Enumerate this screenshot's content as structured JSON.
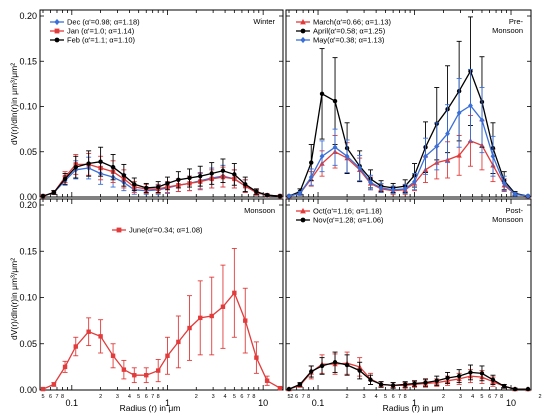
{
  "chart_data": [
    {
      "type": "line",
      "panel": "top-left",
      "title": "Winter",
      "xscale": "log",
      "xlim": [
        0.05,
        15
      ],
      "ylim": [
        0,
        0.2
      ],
      "yticks": [
        "0.00",
        "0.05",
        "0.10",
        "0.15",
        "0.20"
      ],
      "legend_placement": "top-left",
      "x": [
        0.05,
        0.065,
        0.085,
        0.11,
        0.15,
        0.2,
        0.27,
        0.35,
        0.45,
        0.6,
        0.8,
        1.0,
        1.3,
        1.7,
        2.2,
        2.9,
        3.8,
        5.0,
        6.5,
        8.5,
        11,
        15
      ],
      "series": [
        {
          "name": "Dec (α'=0.98; α=1.18)",
          "color": "#3a6fd8",
          "marker": "diamond",
          "values": [
            0.001,
            0.005,
            0.018,
            0.03,
            0.032,
            0.026,
            0.022,
            0.016,
            0.008,
            0.007,
            0.008,
            0.01,
            0.013,
            0.015,
            0.018,
            0.021,
            0.023,
            0.02,
            0.012,
            0.005,
            0.002,
            0.001
          ],
          "errors": [
            0,
            0.002,
            0.005,
            0.01,
            0.012,
            0.012,
            0.011,
            0.009,
            0.005,
            0.004,
            0.005,
            0.006,
            0.007,
            0.008,
            0.009,
            0.011,
            0.012,
            0.01,
            0.007,
            0.003,
            0.001,
            0
          ]
        },
        {
          "name": "Jan (α'=1.0; α=1.14)",
          "color": "#e23b3b",
          "marker": "square",
          "values": [
            0.001,
            0.005,
            0.022,
            0.036,
            0.036,
            0.032,
            0.028,
            0.02,
            0.011,
            0.009,
            0.009,
            0.011,
            0.013,
            0.015,
            0.017,
            0.02,
            0.022,
            0.02,
            0.012,
            0.005,
            0.002,
            0.001
          ],
          "errors": [
            0,
            0.002,
            0.006,
            0.011,
            0.012,
            0.013,
            0.012,
            0.01,
            0.006,
            0.005,
            0.005,
            0.006,
            0.007,
            0.008,
            0.009,
            0.01,
            0.011,
            0.01,
            0.007,
            0.003,
            0.001,
            0
          ]
        },
        {
          "name": "Feb (α'=1.1; α=1.10)",
          "color": "#000000",
          "marker": "circle",
          "values": [
            0.001,
            0.005,
            0.02,
            0.033,
            0.037,
            0.039,
            0.033,
            0.024,
            0.014,
            0.01,
            0.011,
            0.015,
            0.019,
            0.021,
            0.023,
            0.026,
            0.029,
            0.025,
            0.014,
            0.006,
            0.002,
            0.001
          ],
          "errors": [
            0,
            0.002,
            0.006,
            0.012,
            0.014,
            0.016,
            0.014,
            0.012,
            0.007,
            0.005,
            0.006,
            0.007,
            0.009,
            0.01,
            0.011,
            0.012,
            0.013,
            0.012,
            0.008,
            0.003,
            0.001,
            0
          ]
        }
      ]
    },
    {
      "type": "line",
      "panel": "top-right",
      "title": "Pre-\nMonsoon",
      "xscale": "log",
      "xlim": [
        0.05,
        15
      ],
      "ylim": [
        0,
        0.2
      ],
      "legend_placement": "top-left",
      "x": [
        0.05,
        0.065,
        0.085,
        0.11,
        0.15,
        0.2,
        0.27,
        0.35,
        0.45,
        0.6,
        0.8,
        1.0,
        1.3,
        1.7,
        2.2,
        2.9,
        3.8,
        5.0,
        6.5,
        8.5,
        11,
        15
      ],
      "series": [
        {
          "name": "March(α'=0.66; α=1.13)",
          "color": "#e23b3b",
          "marker": "triangle",
          "values": [
            0.001,
            0.004,
            0.02,
            0.037,
            0.05,
            0.043,
            0.03,
            0.015,
            0.009,
            0.007,
            0.008,
            0.015,
            0.03,
            0.038,
            0.041,
            0.046,
            0.062,
            0.057,
            0.035,
            0.013,
            0.003,
            0.001
          ],
          "errors": [
            0,
            0.002,
            0.008,
            0.014,
            0.018,
            0.017,
            0.013,
            0.007,
            0.004,
            0.004,
            0.005,
            0.008,
            0.014,
            0.018,
            0.02,
            0.022,
            0.028,
            0.027,
            0.018,
            0.007,
            0.002,
            0
          ]
        },
        {
          "name": "April(α'=0.58; α=1.25)",
          "color": "#000000",
          "marker": "circle",
          "values": [
            0.001,
            0.006,
            0.038,
            0.114,
            0.106,
            0.054,
            0.034,
            0.02,
            0.012,
            0.01,
            0.012,
            0.024,
            0.055,
            0.081,
            0.097,
            0.117,
            0.139,
            0.105,
            0.054,
            0.018,
            0.004,
            0.001
          ],
          "errors": [
            0,
            0.003,
            0.02,
            0.05,
            0.048,
            0.028,
            0.017,
            0.01,
            0.006,
            0.005,
            0.007,
            0.013,
            0.028,
            0.04,
            0.048,
            0.055,
            0.06,
            0.05,
            0.028,
            0.01,
            0.002,
            0
          ]
        },
        {
          "name": "May(α'=0.38; α=1.13)",
          "color": "#3a6fd8",
          "marker": "diamond",
          "values": [
            0.001,
            0.004,
            0.022,
            0.045,
            0.055,
            0.045,
            0.032,
            0.016,
            0.01,
            0.008,
            0.009,
            0.017,
            0.045,
            0.056,
            0.07,
            0.093,
            0.101,
            0.085,
            0.045,
            0.015,
            0.003,
            0.001
          ],
          "errors": [
            0,
            0.002,
            0.009,
            0.017,
            0.02,
            0.018,
            0.014,
            0.008,
            0.005,
            0.004,
            0.005,
            0.009,
            0.02,
            0.026,
            0.032,
            0.038,
            0.04,
            0.036,
            0.022,
            0.008,
            0.002,
            0
          ]
        }
      ]
    },
    {
      "type": "line",
      "panel": "bottom-left",
      "title": "Monsoon",
      "xscale": "log",
      "xlim": [
        0.05,
        15
      ],
      "ylim": [
        0,
        0.2
      ],
      "yticks": [
        "0.00",
        "0.05",
        "0.10",
        "0.15",
        "0.20"
      ],
      "legend_placement": "top-center",
      "x": [
        0.05,
        0.065,
        0.085,
        0.11,
        0.15,
        0.2,
        0.27,
        0.35,
        0.45,
        0.6,
        0.8,
        1.0,
        1.3,
        1.7,
        2.2,
        2.9,
        3.8,
        5.0,
        6.5,
        8.5,
        11,
        15
      ],
      "series": [
        {
          "name": "June(α'=0.34; α=1.08)",
          "color": "#e23b3b",
          "marker": "square",
          "values": [
            0.001,
            0.006,
            0.025,
            0.047,
            0.063,
            0.058,
            0.037,
            0.022,
            0.016,
            0.016,
            0.021,
            0.037,
            0.052,
            0.067,
            0.078,
            0.08,
            0.09,
            0.105,
            0.075,
            0.035,
            0.01,
            0.002
          ],
          "errors": [
            0,
            0.002,
            0.006,
            0.01,
            0.015,
            0.018,
            0.013,
            0.01,
            0.008,
            0.008,
            0.012,
            0.02,
            0.028,
            0.035,
            0.04,
            0.042,
            0.045,
            0.048,
            0.035,
            0.017,
            0.005,
            0.001
          ]
        }
      ]
    },
    {
      "type": "line",
      "panel": "bottom-right",
      "title": "Post-\nMonsoon",
      "xscale": "log",
      "xlim": [
        0.05,
        15
      ],
      "ylim": [
        0,
        0.2
      ],
      "legend_placement": "top-left",
      "x": [
        0.05,
        0.065,
        0.085,
        0.11,
        0.15,
        0.2,
        0.27,
        0.35,
        0.45,
        0.6,
        0.8,
        1.0,
        1.3,
        1.7,
        2.2,
        2.9,
        3.8,
        5.0,
        6.5,
        8.5,
        11,
        15
      ],
      "series": [
        {
          "name": "Oct(α'=1.16; α=1.18)",
          "color": "#e23b3b",
          "marker": "triangle",
          "values": [
            0.001,
            0.005,
            0.019,
            0.028,
            0.028,
            0.029,
            0.025,
            0.012,
            0.006,
            0.005,
            0.005,
            0.006,
            0.007,
            0.008,
            0.01,
            0.012,
            0.015,
            0.014,
            0.009,
            0.004,
            0.001,
            0.001
          ],
          "errors": [
            0,
            0.002,
            0.007,
            0.01,
            0.011,
            0.012,
            0.01,
            0.006,
            0.003,
            0.003,
            0.003,
            0.003,
            0.004,
            0.004,
            0.005,
            0.006,
            0.007,
            0.007,
            0.005,
            0.002,
            0.001,
            0
          ]
        },
        {
          "name": "Nov(α'=1.28; α=1.06)",
          "color": "#000000",
          "marker": "circle",
          "values": [
            0.001,
            0.006,
            0.02,
            0.026,
            0.03,
            0.027,
            0.021,
            0.011,
            0.006,
            0.005,
            0.006,
            0.007,
            0.008,
            0.01,
            0.013,
            0.015,
            0.019,
            0.018,
            0.011,
            0.004,
            0.001,
            0.001
          ],
          "errors": [
            0,
            0.002,
            0.006,
            0.009,
            0.011,
            0.011,
            0.009,
            0.005,
            0.003,
            0.003,
            0.003,
            0.003,
            0.004,
            0.005,
            0.006,
            0.007,
            0.008,
            0.008,
            0.005,
            0.002,
            0.001,
            0
          ]
        }
      ]
    }
  ],
  "axes": {
    "ylabel": "dV(r)/dln(r)in μm³/μm²",
    "xlabel": "Radius (r) in μm",
    "xticks_major": [
      "0.1",
      "1",
      "10"
    ],
    "xticks_minor": [
      "5",
      "6",
      "7",
      "8",
      "2",
      "3",
      "4",
      "5",
      "6",
      "7",
      "8",
      "2",
      "3",
      "4",
      "5",
      "6",
      "7",
      "8",
      "2"
    ]
  }
}
